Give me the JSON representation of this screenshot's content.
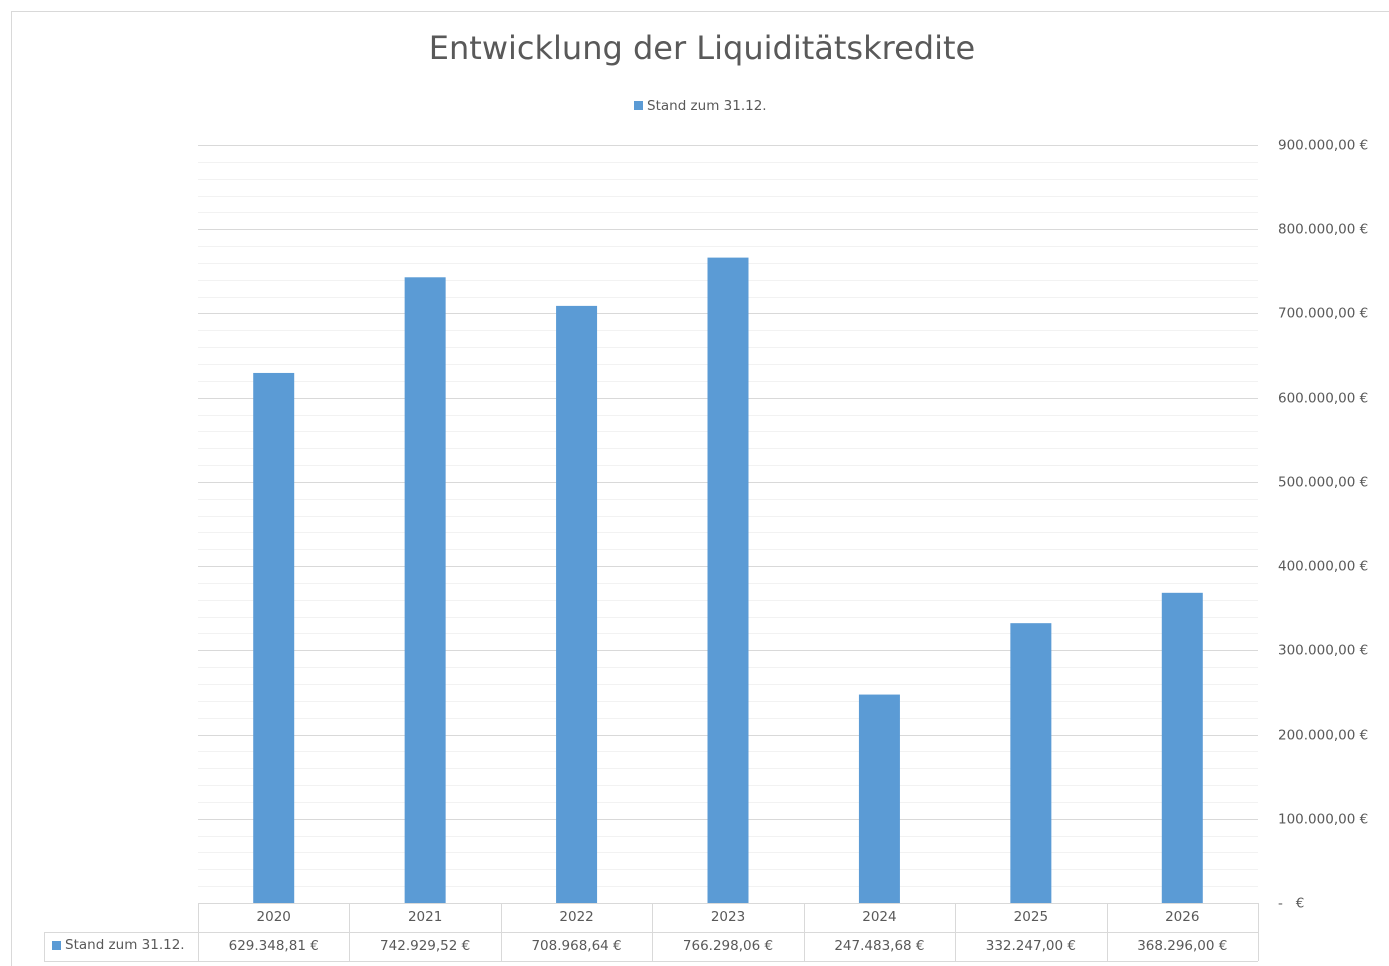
{
  "chart_data": {
    "type": "bar",
    "title": "Entwicklung der Liquiditätskredite",
    "categories": [
      "2020",
      "2021",
      "2022",
      "2023",
      "2024",
      "2025",
      "2026"
    ],
    "series": [
      {
        "name": "Stand zum 31.12.",
        "color": "#5b9bd5",
        "values": [
          629348.81,
          742929.52,
          708968.64,
          766298.06,
          247483.68,
          332247.0,
          368296.0
        ],
        "value_labels": [
          "629.348,81 €",
          "742.929,52 €",
          "708.968,64 €",
          "766.298,06 €",
          "247.483,68 €",
          "332.247,00 €",
          "368.296,00 €"
        ]
      }
    ],
    "ylim": [
      0,
      900000
    ],
    "yticks": [
      {
        "value": 0,
        "label": "-   €"
      },
      {
        "value": 100000,
        "label": "100.000,00 €"
      },
      {
        "value": 200000,
        "label": "200.000,00 €"
      },
      {
        "value": 300000,
        "label": "300.000,00 €"
      },
      {
        "value": 400000,
        "label": "400.000,00 €"
      },
      {
        "value": 500000,
        "label": "500.000,00 €"
      },
      {
        "value": 600000,
        "label": "600.000,00 €"
      },
      {
        "value": 700000,
        "label": "700.000,00 €"
      },
      {
        "value": 800000,
        "label": "800.000,00 €"
      },
      {
        "value": 900000,
        "label": "900.000,00 €"
      }
    ],
    "minor_yticks": [
      20000,
      40000,
      60000,
      80000,
      120000,
      140000,
      160000,
      180000,
      220000,
      240000,
      260000,
      280000,
      320000,
      340000,
      360000,
      380000,
      420000,
      440000,
      460000,
      480000,
      520000,
      540000,
      560000,
      580000,
      620000,
      640000,
      660000,
      680000,
      720000,
      740000,
      760000,
      780000,
      820000,
      840000,
      860000,
      880000
    ],
    "y_axis_side": "right",
    "grid": true,
    "legend": "top",
    "data_table": true
  }
}
